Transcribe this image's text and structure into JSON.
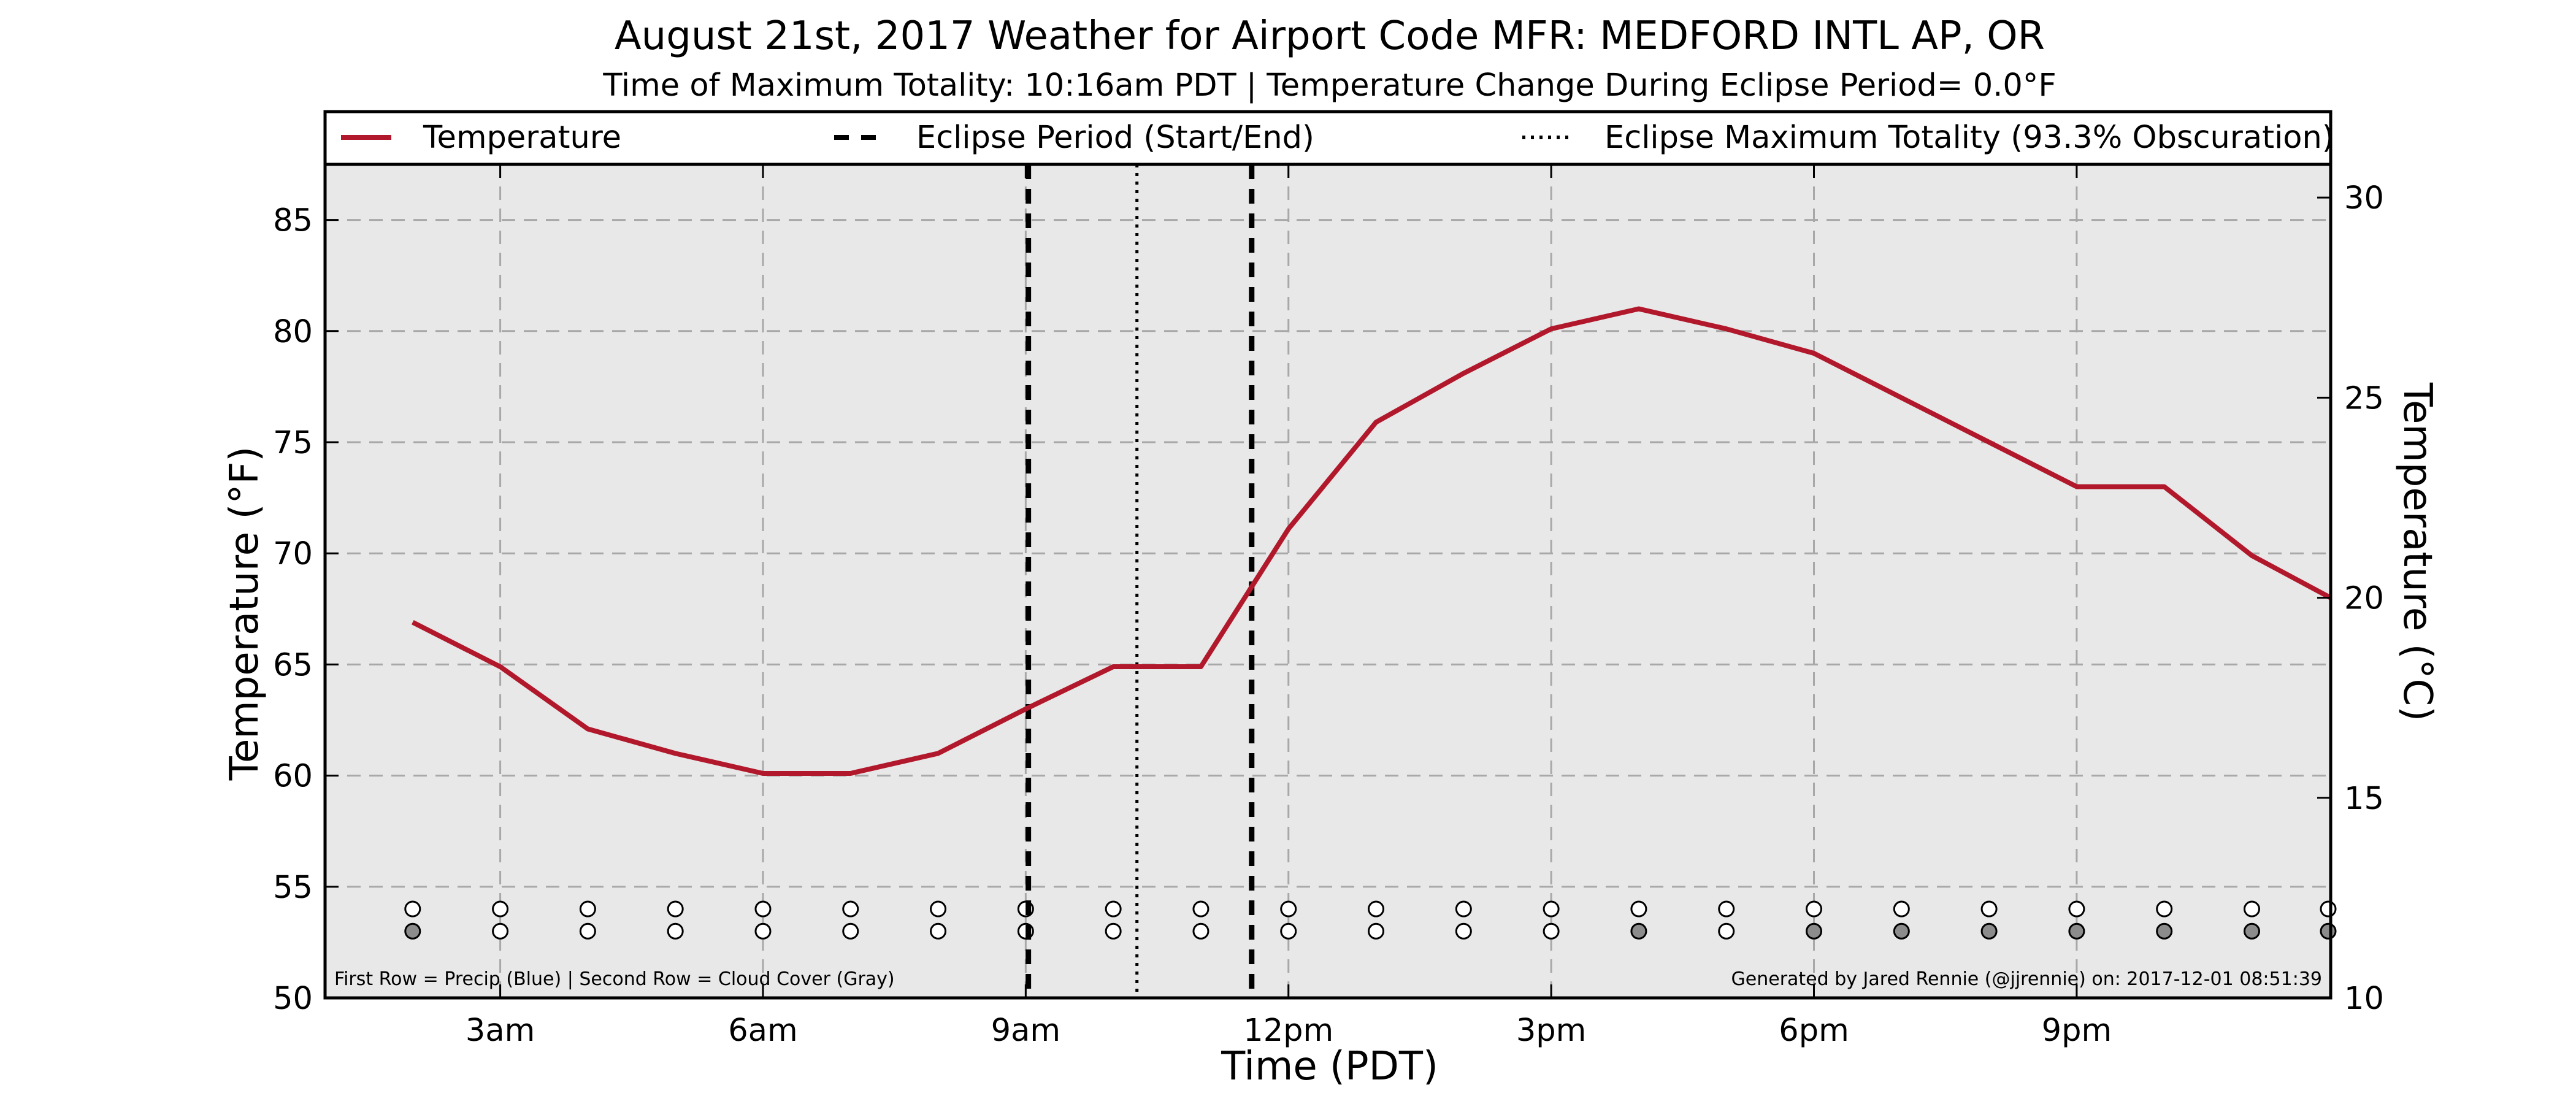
{
  "chart_data": {
    "type": "line",
    "title": "August 21st, 2017 Weather for Airport Code MFR: MEDFORD INTL  AP, OR",
    "subtitle": "Time of Maximum Totality: 10:16am PDT | Temperature Change During Eclipse Period= 0.0°F",
    "xlabel": "Time (PDT)",
    "ylabel_left": "Temperature (°F)",
    "ylabel_right": "Temperature (°C)",
    "x_unit": "hours after midnight PDT, August 21st, 2017",
    "xlim": [
      1,
      23.9
    ],
    "ylim": [
      50,
      87.5
    ],
    "ylim_right": [
      10,
      30.83
    ],
    "x_ticks": [
      3,
      6,
      9,
      12,
      15,
      18,
      21
    ],
    "x_tick_labels": [
      "3am",
      "6am",
      "9am",
      "12pm",
      "3pm",
      "6pm",
      "9pm"
    ],
    "y_ticks": [
      50,
      55,
      60,
      65,
      70,
      75,
      80,
      85
    ],
    "y_tick_labels": [
      "50",
      "55",
      "60",
      "65",
      "70",
      "75",
      "80",
      "85"
    ],
    "y2_ticks": [
      10,
      15,
      20,
      25,
      30
    ],
    "y2_tick_labels": [
      "10",
      "15",
      "20",
      "25",
      "30"
    ],
    "grid": true,
    "legend_position": "top",
    "legend": [
      "Temperature",
      "Eclipse Period (Start/End)",
      "Eclipse Maximum Totality (93.3% Obscuration)"
    ],
    "series": [
      {
        "name": "Temperature",
        "color": "#b2182b",
        "x": [
          2,
          3,
          4,
          5,
          6,
          7,
          8,
          9,
          10,
          11,
          12,
          13,
          14,
          15,
          16,
          17,
          18,
          19,
          20,
          21,
          22,
          23,
          23.9
        ],
        "y": [
          66.9,
          64.9,
          62.1,
          61.0,
          60.1,
          60.1,
          61.0,
          63.0,
          64.9,
          64.9,
          71.1,
          75.9,
          78.1,
          80.1,
          81.0,
          80.1,
          79.0,
          77.0,
          75.0,
          73.0,
          73.0,
          69.9,
          68.0
        ]
      }
    ],
    "eclipse": {
      "start": 9.03,
      "end": 11.58,
      "max_totality": 10.27,
      "period_color": "#000000",
      "max_color": "#000000"
    },
    "precip_row": {
      "x": [
        2,
        3,
        4,
        5,
        6,
        7,
        8,
        9,
        10,
        11,
        12,
        13,
        14,
        15,
        16,
        17,
        18,
        19,
        20,
        21,
        22,
        23,
        24
      ],
      "filled": [
        false,
        false,
        false,
        false,
        false,
        false,
        false,
        false,
        false,
        false,
        false,
        false,
        false,
        false,
        false,
        false,
        false,
        false,
        false,
        false,
        false,
        false,
        false
      ],
      "level": 54.0
    },
    "cloud_row": {
      "x": [
        2,
        3,
        4,
        5,
        6,
        7,
        8,
        9,
        10,
        11,
        12,
        13,
        14,
        15,
        16,
        17,
        18,
        19,
        20,
        21,
        22,
        23,
        24
      ],
      "filled": [
        true,
        false,
        false,
        false,
        false,
        false,
        false,
        false,
        false,
        false,
        false,
        false,
        false,
        false,
        true,
        false,
        true,
        true,
        true,
        true,
        true,
        true,
        true
      ],
      "level": 53.0
    },
    "footnote_left": "First Row = Precip (Blue) | Second Row = Cloud Cover (Gray)",
    "footnote_right": "Generated by Jared Rennie (@jjrennie) on: 2017-12-01 08:51:39",
    "colors": {
      "plot_background": "#e8e8e8",
      "grid": "#a8a8a8",
      "cloud_fill": "#8c8c8c",
      "precip_fill": "#4a7fd8"
    }
  }
}
